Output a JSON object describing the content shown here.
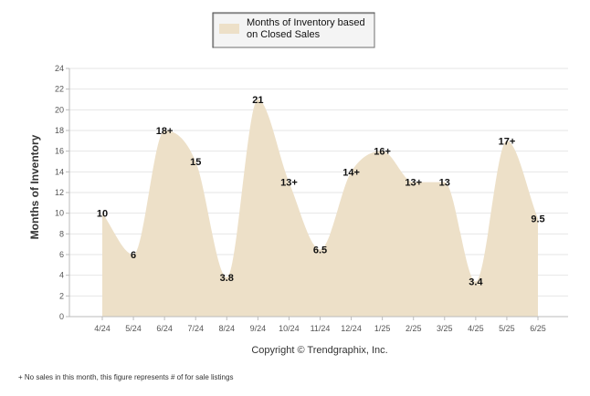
{
  "chart_data": {
    "type": "area",
    "ylabel": "Months of Inventory",
    "xlabel": "",
    "ylim": [
      0,
      24
    ],
    "yticks": [
      0,
      2,
      4,
      6,
      8,
      10,
      12,
      14,
      16,
      18,
      20,
      22,
      24
    ],
    "grid": true,
    "legend_placement": "top-center",
    "categories": [
      "4/24",
      "5/24",
      "6/24",
      "7/24",
      "8/24",
      "9/24",
      "10/24",
      "11/24",
      "12/24",
      "1/25",
      "2/25",
      "3/25",
      "4/25",
      "5/25",
      "6/25"
    ],
    "series": [
      {
        "name": "Months of Inventory based on Closed Sales",
        "values": [
          10,
          6,
          18,
          15,
          3.8,
          21,
          13,
          6.5,
          14,
          16,
          13,
          13,
          3.4,
          17,
          9.5
        ],
        "labels": [
          "10",
          "6",
          "18+",
          "15",
          "3.8",
          "21",
          "13+",
          "6.5",
          "14+",
          "16+",
          "13+",
          "13",
          "3.4",
          "17+",
          "9.5"
        ],
        "color": "#ede0c8"
      }
    ]
  },
  "legend": {
    "line1": "Months of Inventory based",
    "line2": "on Closed Sales"
  },
  "copyright": "Copyright © Trendgraphix, Inc.",
  "footnote": "+  No sales in this month, this figure represents # of for sale listings"
}
